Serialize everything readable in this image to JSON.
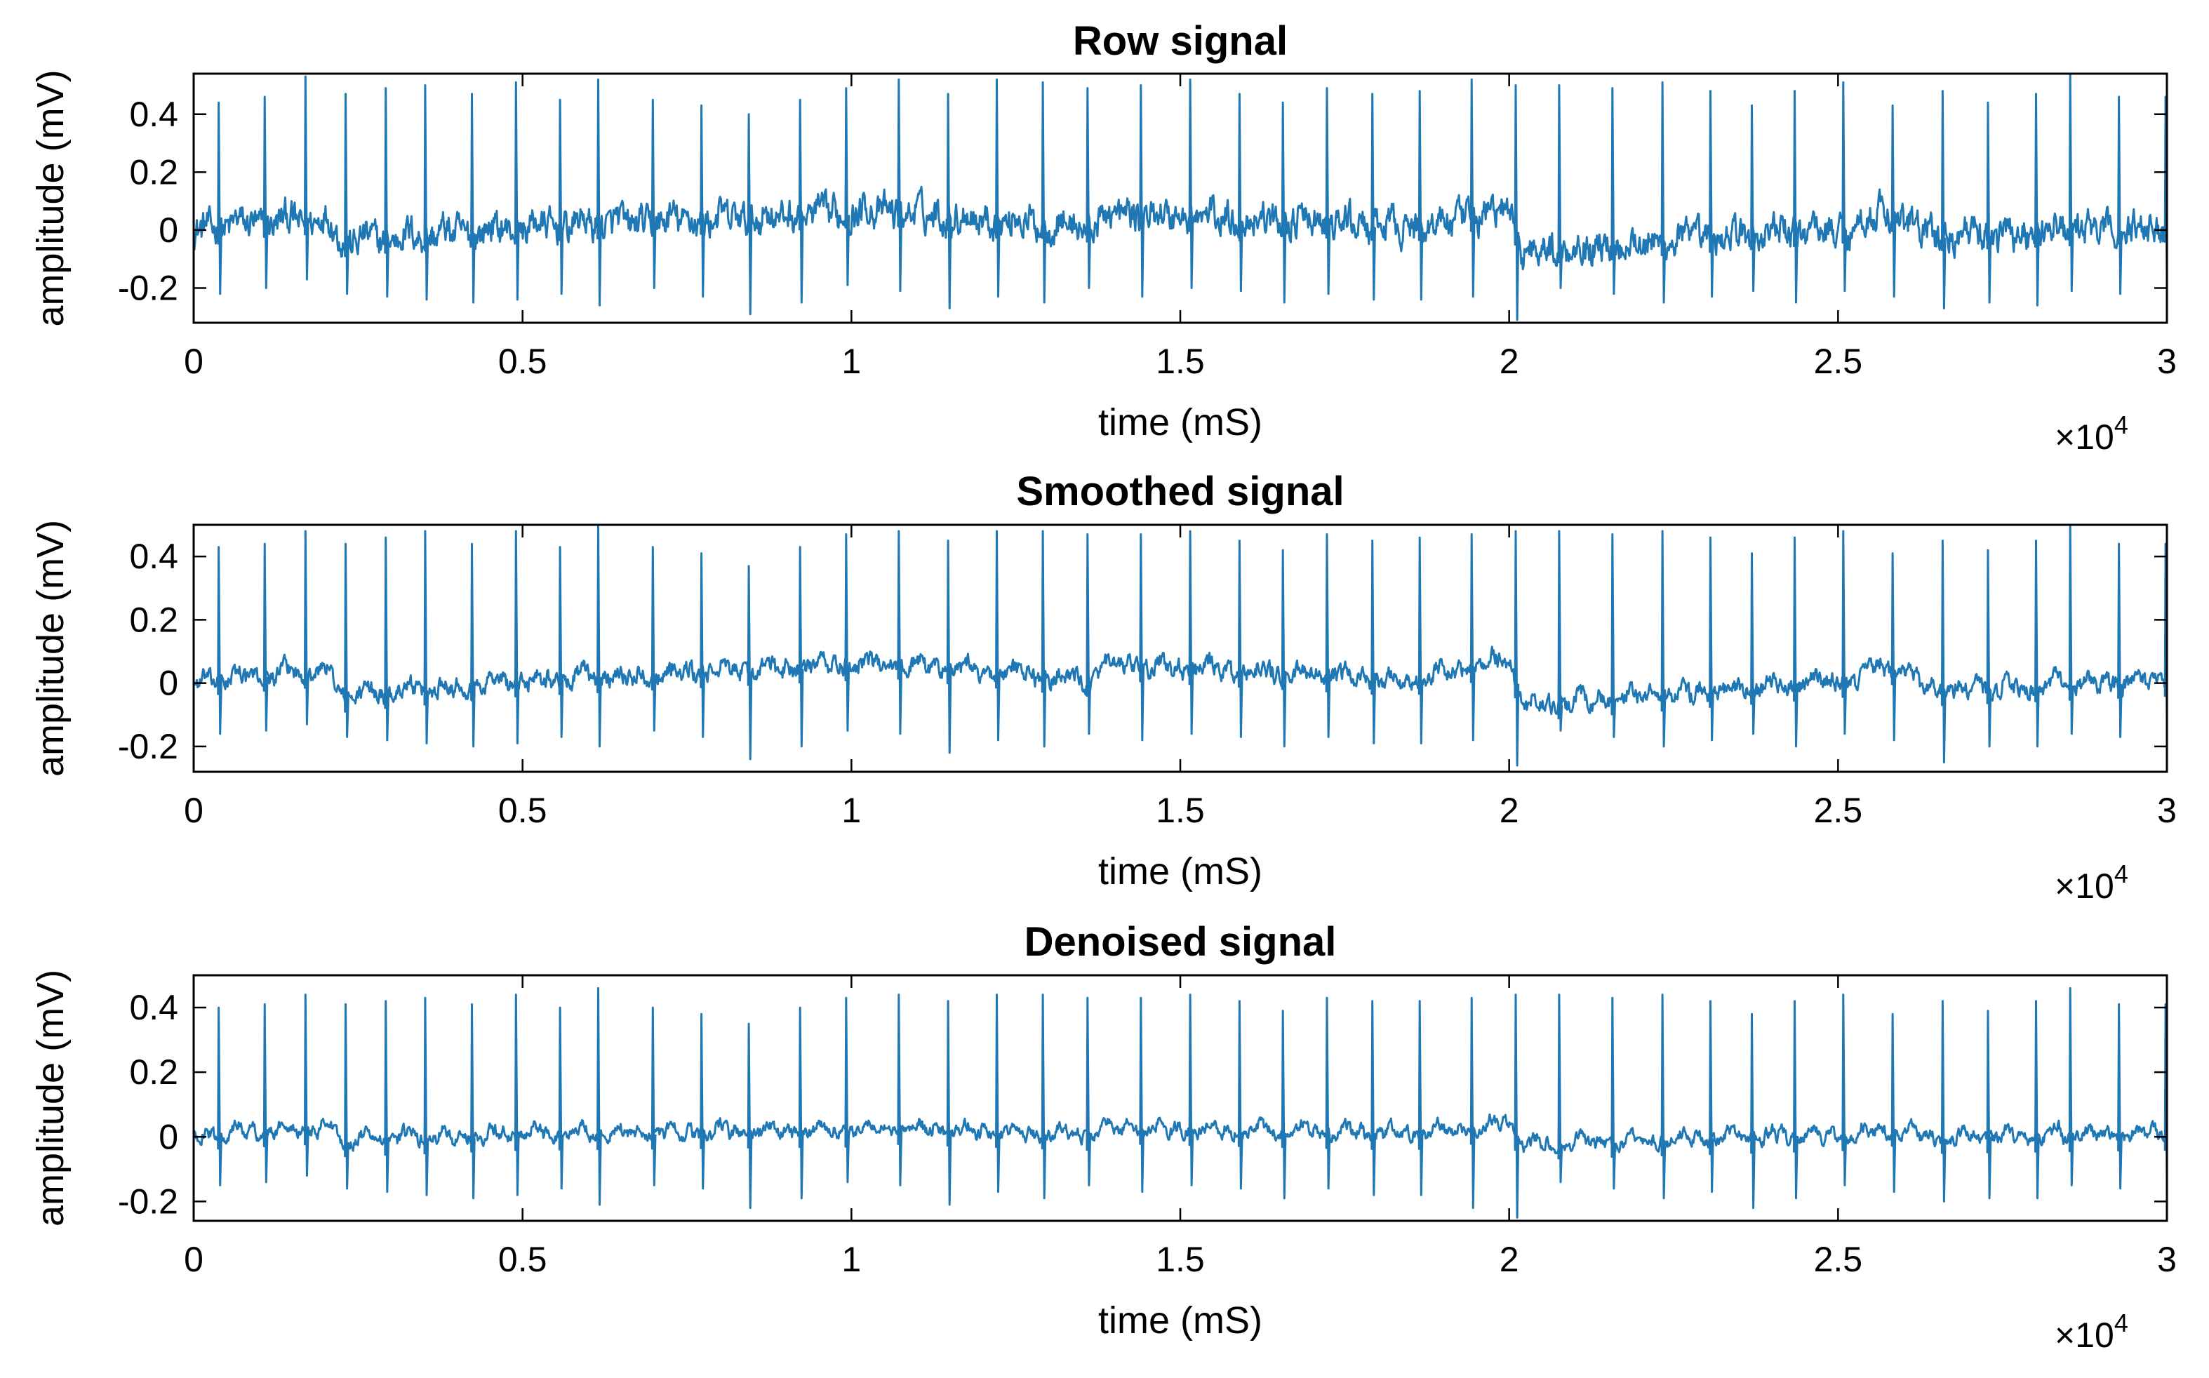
{
  "chart_data": [
    {
      "type": "line",
      "title": "Row signal",
      "xlabel": "time (mS)",
      "ylabel": "amplitude (mV)",
      "x_multiplier_label": "×10",
      "x_multiplier_exponent": "4",
      "xlim": [
        0,
        30000
      ],
      "ylim": [
        -0.32,
        0.54
      ],
      "xticks": [
        0,
        5000,
        10000,
        15000,
        20000,
        25000,
        30000
      ],
      "xtick_labels": [
        "0",
        "0.5",
        "1",
        "1.5",
        "2",
        "2.5",
        "3"
      ],
      "yticks": [
        -0.2,
        0,
        0.2,
        0.4
      ],
      "ytick_labels": [
        "-0.2",
        "0",
        "0.2",
        "0.4"
      ],
      "grid": false,
      "series": [
        {
          "color": "#1f77b4",
          "peak_times": [
            380,
            1080,
            1700,
            2310,
            2920,
            3520,
            4230,
            4900,
            5570,
            6150,
            6980,
            7720,
            8440,
            9220,
            9920,
            10720,
            11470,
            12210,
            12910,
            13590,
            14400,
            15150,
            15900,
            16560,
            17230,
            17920,
            18640,
            19430,
            20100,
            20760,
            21570,
            22330,
            23060,
            23690,
            24340,
            25080,
            25830,
            26590,
            27280,
            28010,
            28530,
            29270,
            29980
          ],
          "peak_values": [
            0.44,
            0.46,
            0.53,
            0.47,
            0.49,
            0.5,
            0.47,
            0.51,
            0.45,
            0.52,
            0.45,
            0.43,
            0.4,
            0.45,
            0.49,
            0.52,
            0.47,
            0.52,
            0.51,
            0.49,
            0.5,
            0.52,
            0.47,
            0.44,
            0.49,
            0.47,
            0.48,
            0.52,
            0.5,
            0.5,
            0.49,
            0.51,
            0.48,
            0.43,
            0.48,
            0.51,
            0.43,
            0.48,
            0.44,
            0.47,
            0.54,
            0.46,
            0.46
          ],
          "trough_values": [
            -0.22,
            -0.2,
            -0.17,
            -0.22,
            -0.23,
            -0.24,
            -0.25,
            -0.24,
            -0.22,
            -0.26,
            -0.2,
            -0.23,
            -0.29,
            -0.25,
            -0.19,
            -0.21,
            -0.27,
            -0.23,
            -0.25,
            -0.2,
            -0.23,
            -0.2,
            -0.21,
            -0.25,
            -0.22,
            -0.24,
            -0.24,
            -0.23,
            -0.31,
            -0.2,
            -0.22,
            -0.25,
            -0.23,
            -0.21,
            -0.25,
            -0.21,
            -0.23,
            -0.27,
            -0.25,
            -0.26,
            -0.21,
            -0.22,
            -0.22
          ],
          "baseline_times": [
            0,
            2000,
            2300,
            5000,
            10000,
            10400,
            13600,
            14000,
            18500,
            20000,
            20200,
            25300,
            25600,
            26500,
            30000
          ],
          "baseline_values": [
            0,
            0.03,
            -0.05,
            0,
            0.05,
            0.06,
            0,
            0.05,
            0,
            0.06,
            -0.08,
            0,
            0.06,
            -0.03,
            0
          ],
          "noise_amplitude": 0.05
        }
      ]
    },
    {
      "type": "line",
      "title": "Smoothed signal",
      "xlabel": "time (mS)",
      "ylabel": "amplitude (mV)",
      "x_multiplier_label": "×10",
      "x_multiplier_exponent": "4",
      "xlim": [
        0,
        30000
      ],
      "ylim": [
        -0.28,
        0.5
      ],
      "xticks": [
        0,
        5000,
        10000,
        15000,
        20000,
        25000,
        30000
      ],
      "xtick_labels": [
        "0",
        "0.5",
        "1",
        "1.5",
        "2",
        "2.5",
        "3"
      ],
      "yticks": [
        -0.2,
        0,
        0.2,
        0.4
      ],
      "ytick_labels": [
        "-0.2",
        "0",
        "0.2",
        "0.4"
      ],
      "grid": false,
      "series": [
        {
          "color": "#1f77b4",
          "peak_times": [
            380,
            1080,
            1700,
            2310,
            2920,
            3520,
            4230,
            4900,
            5570,
            6150,
            6980,
            7720,
            8440,
            9220,
            9920,
            10720,
            11470,
            12210,
            12910,
            13590,
            14400,
            15150,
            15900,
            16560,
            17230,
            17920,
            18640,
            19430,
            20100,
            20760,
            21570,
            22330,
            23060,
            23690,
            24340,
            25080,
            25830,
            26590,
            27280,
            28010,
            28530,
            29270,
            29980
          ],
          "peak_values": [
            0.43,
            0.44,
            0.48,
            0.44,
            0.46,
            0.48,
            0.44,
            0.48,
            0.43,
            0.5,
            0.43,
            0.41,
            0.37,
            0.43,
            0.47,
            0.48,
            0.45,
            0.48,
            0.48,
            0.47,
            0.47,
            0.48,
            0.45,
            0.42,
            0.47,
            0.45,
            0.46,
            0.47,
            0.48,
            0.48,
            0.47,
            0.48,
            0.46,
            0.41,
            0.46,
            0.48,
            0.41,
            0.45,
            0.42,
            0.45,
            0.5,
            0.44,
            0.44
          ],
          "trough_values": [
            -0.16,
            -0.15,
            -0.13,
            -0.17,
            -0.18,
            -0.19,
            -0.2,
            -0.19,
            -0.17,
            -0.2,
            -0.15,
            -0.17,
            -0.24,
            -0.2,
            -0.15,
            -0.16,
            -0.22,
            -0.18,
            -0.2,
            -0.16,
            -0.18,
            -0.16,
            -0.17,
            -0.2,
            -0.17,
            -0.19,
            -0.19,
            -0.18,
            -0.26,
            -0.15,
            -0.17,
            -0.2,
            -0.18,
            -0.16,
            -0.2,
            -0.16,
            -0.18,
            -0.25,
            -0.2,
            -0.2,
            -0.16,
            -0.17,
            -0.17
          ],
          "baseline_times": [
            0,
            2000,
            2300,
            5000,
            10000,
            10400,
            13600,
            14000,
            18500,
            20000,
            20200,
            25300,
            25600,
            26500,
            30000
          ],
          "baseline_values": [
            0,
            0.03,
            -0.05,
            0,
            0.05,
            0.06,
            0,
            0.05,
            0,
            0.07,
            -0.08,
            0,
            0.06,
            -0.03,
            0
          ],
          "noise_amplitude": 0.025
        }
      ]
    },
    {
      "type": "line",
      "title": "Denoised signal",
      "xlabel": "time (mS)",
      "ylabel": "amplitude (mV)",
      "x_multiplier_label": "×10",
      "x_multiplier_exponent": "4",
      "xlim": [
        0,
        30000
      ],
      "ylim": [
        -0.26,
        0.5
      ],
      "xticks": [
        0,
        5000,
        10000,
        15000,
        20000,
        25000,
        30000
      ],
      "xtick_labels": [
        "0",
        "0.5",
        "1",
        "1.5",
        "2",
        "2.5",
        "3"
      ],
      "yticks": [
        -0.2,
        0,
        0.2,
        0.4
      ],
      "ytick_labels": [
        "-0.2",
        "0",
        "0.2",
        "0.4"
      ],
      "grid": false,
      "series": [
        {
          "color": "#1f77b4",
          "peak_times": [
            380,
            1080,
            1700,
            2310,
            2920,
            3520,
            4230,
            4900,
            5570,
            6150,
            6980,
            7720,
            8440,
            9220,
            9920,
            10720,
            11470,
            12210,
            12910,
            13590,
            14400,
            15150,
            15900,
            16560,
            17230,
            17920,
            18640,
            19430,
            20100,
            20760,
            21570,
            22330,
            23060,
            23690,
            24340,
            25080,
            25830,
            26590,
            27280,
            28010,
            28530,
            29270,
            29980
          ],
          "peak_values": [
            0.4,
            0.41,
            0.44,
            0.41,
            0.42,
            0.43,
            0.41,
            0.44,
            0.4,
            0.46,
            0.4,
            0.38,
            0.35,
            0.4,
            0.43,
            0.44,
            0.42,
            0.44,
            0.44,
            0.43,
            0.43,
            0.44,
            0.42,
            0.39,
            0.43,
            0.42,
            0.42,
            0.43,
            0.44,
            0.44,
            0.43,
            0.44,
            0.42,
            0.38,
            0.42,
            0.44,
            0.38,
            0.42,
            0.39,
            0.42,
            0.46,
            0.41,
            0.41
          ],
          "trough_values": [
            -0.15,
            -0.14,
            -0.12,
            -0.16,
            -0.17,
            -0.18,
            -0.19,
            -0.18,
            -0.16,
            -0.21,
            -0.15,
            -0.16,
            -0.22,
            -0.19,
            -0.14,
            -0.15,
            -0.21,
            -0.17,
            -0.19,
            -0.15,
            -0.17,
            -0.15,
            -0.16,
            -0.19,
            -0.16,
            -0.18,
            -0.18,
            -0.22,
            -0.25,
            -0.14,
            -0.16,
            -0.19,
            -0.17,
            -0.22,
            -0.19,
            -0.15,
            -0.17,
            -0.2,
            -0.19,
            -0.19,
            -0.15,
            -0.16,
            -0.18
          ],
          "baseline_times": [
            0,
            2000,
            2300,
            5000,
            10000,
            10400,
            13600,
            14000,
            18500,
            20000,
            20200,
            25300,
            25600,
            26500,
            30000
          ],
          "baseline_values": [
            0,
            0.02,
            -0.02,
            0,
            0.01,
            0.02,
            0,
            0.02,
            0,
            0.03,
            -0.03,
            0,
            0.02,
            -0.01,
            0
          ],
          "noise_amplitude": 0.018
        }
      ]
    }
  ]
}
